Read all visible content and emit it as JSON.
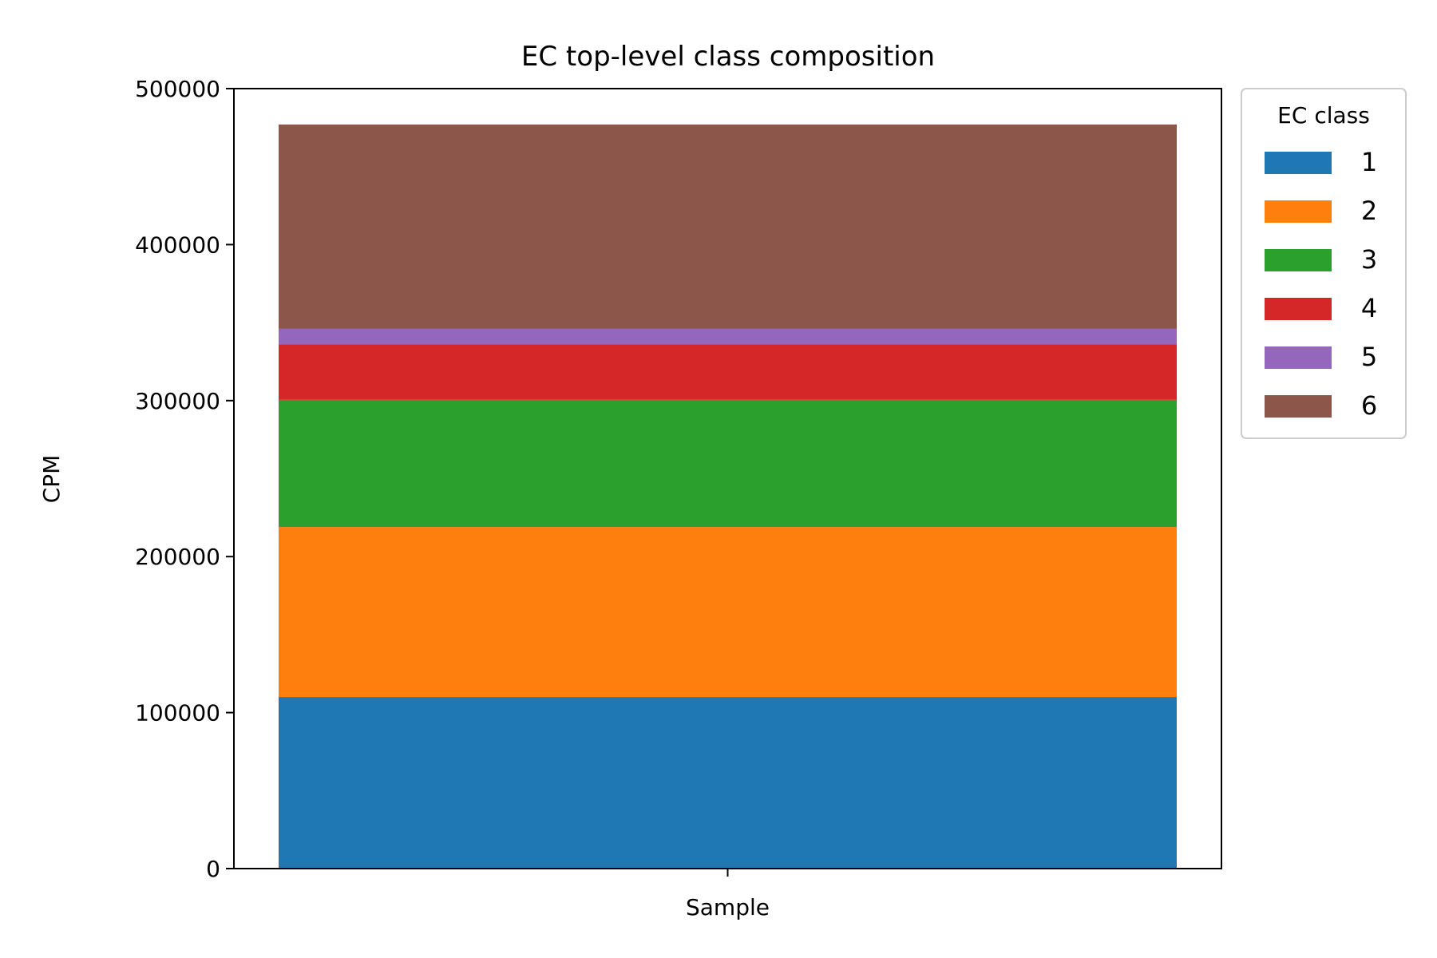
{
  "chart_data": {
    "type": "bar",
    "stacked": true,
    "title": "EC top-level class composition",
    "xlabel": "",
    "ylabel": "CPM",
    "categories": [
      "Sample"
    ],
    "ylim": [
      0,
      500000
    ],
    "yticks": [
      0,
      100000,
      200000,
      300000,
      400000,
      500000
    ],
    "grid": false,
    "legend": {
      "title": "EC class",
      "placement": "outside-top-right"
    },
    "series": [
      {
        "name": "1",
        "values": [
          110000
        ],
        "color": "#1f77b4"
      },
      {
        "name": "2",
        "values": [
          109000
        ],
        "color": "#ff7f0e"
      },
      {
        "name": "3",
        "values": [
          81500
        ],
        "color": "#2ca02c"
      },
      {
        "name": "4",
        "values": [
          35500
        ],
        "color": "#d62728"
      },
      {
        "name": "5",
        "values": [
          10000
        ],
        "color": "#9467bd"
      },
      {
        "name": "6",
        "values": [
          131000
        ],
        "color": "#8c564b"
      }
    ]
  }
}
